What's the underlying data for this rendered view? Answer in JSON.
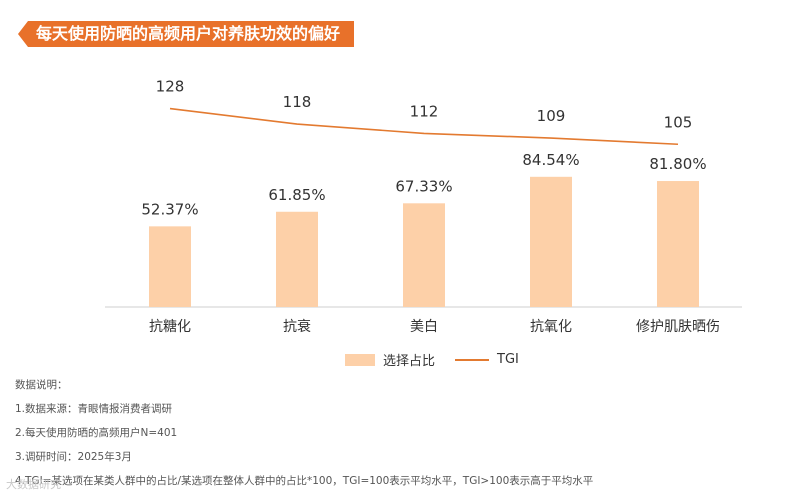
{
  "title": "每天使用防晒的高频用户对养肤功效的偏好",
  "chart_data": {
    "type": "bar+line",
    "categories": [
      "抗糖化",
      "抗衰",
      "美白",
      "抗氧化",
      "修护肌肤晒伤"
    ],
    "series": [
      {
        "name": "选择占比",
        "type": "bar",
        "values": [
          52.37,
          61.85,
          67.33,
          84.54,
          81.8
        ],
        "labels": [
          "52.37%",
          "61.85%",
          "67.33%",
          "84.54%",
          "81.80%"
        ],
        "color": "#fdd0a8"
      },
      {
        "name": "TGI",
        "type": "line",
        "values": [
          128,
          118,
          112,
          109,
          105
        ],
        "labels": [
          "128",
          "118",
          "112",
          "109",
          "105"
        ],
        "color": "#e37a30"
      }
    ],
    "bar_ylim": [
      0,
      100
    ],
    "line_ylim": [
      0,
      160
    ]
  },
  "legend": {
    "bar_label": "选择占比",
    "line_label": "TGI"
  },
  "notes": {
    "heading": "数据说明：",
    "items": [
      "1.数据来源：青眼情报消费者调研",
      "2.每天使用防晒的高频用户N=401",
      "3.调研时间：2025年3月",
      "4.TGI=某选项在某类人群中的占比/某选项在整体人群中的占比*100，TGI=100表示平均水平，TGI>100表示高于平均水平"
    ]
  },
  "watermark": "大数据研究"
}
